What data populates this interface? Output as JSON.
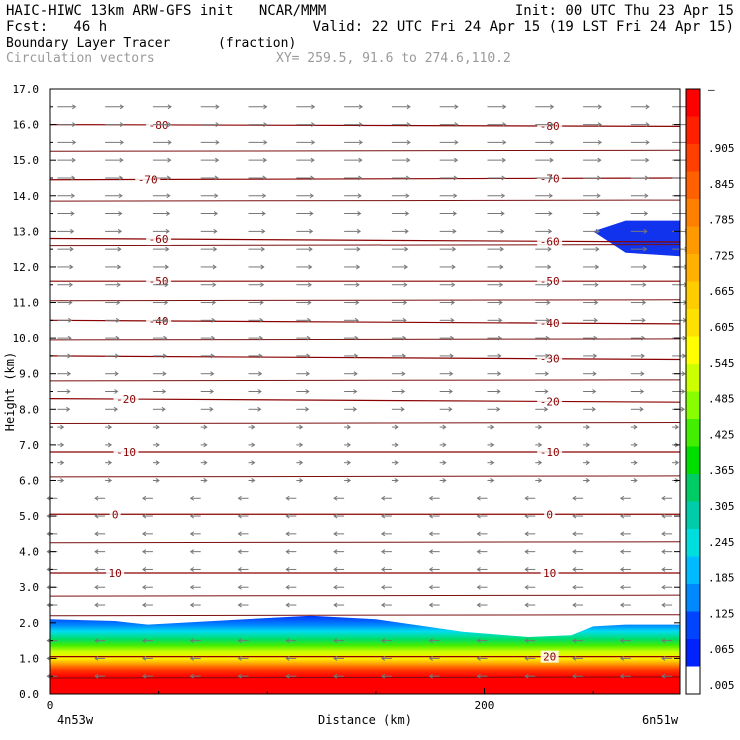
{
  "header": {
    "model_line": "HAIC-HIWC 13km ARW-GFS init   NCAR/MMM",
    "init_line": "Init: 00 UTC Thu 23 Apr 15",
    "fcst_line": "Fcst:   46 h",
    "valid_line": "Valid: 22 UTC Fri 24 Apr 15 (19 LST Fri 24 Apr 15)",
    "field_name": "Boundary Layer Tracer",
    "field_units": "(fraction)",
    "vector_name": "Circulation vectors",
    "xy_line": "XY= 259.5, 91.6 to 274.6,110.2"
  },
  "chart_data": {
    "type": "heatmap",
    "title": "Boundary Layer Tracer",
    "xlabel": "Distance (km)",
    "ylabel": "Height (km)",
    "xlim": [
      0,
      290
    ],
    "ylim": [
      0,
      17
    ],
    "x_ticks": [
      0,
      200
    ],
    "x_tick_labels": [
      "0",
      "200"
    ],
    "x_endpoints": [
      "4n53w",
      "6n51w"
    ],
    "y_ticks": [
      0,
      1,
      2,
      3,
      4,
      5,
      6,
      7,
      8,
      9,
      10,
      11,
      12,
      13,
      14,
      15,
      16,
      17
    ],
    "y_tick_labels": [
      "0.0",
      "1.0",
      "2.0",
      "3.0",
      "4.0",
      "5.0",
      "6.0",
      "7.0",
      "8.0",
      "9.0",
      "10.0",
      "11.0",
      "12.0",
      "13.0",
      "14.0",
      "15.0",
      "16.0",
      "17.0"
    ],
    "boundary_layer_top_km": {
      "x": [
        0,
        30,
        45,
        90,
        120,
        150,
        190,
        220,
        240,
        250,
        265,
        290
      ],
      "y": [
        2.1,
        2.05,
        1.95,
        2.1,
        2.2,
        2.1,
        1.75,
        1.6,
        1.65,
        1.9,
        1.95,
        1.95
      ]
    },
    "upper_patch_km": {
      "x": [
        250,
        265,
        290
      ],
      "y_top": [
        13.0,
        13.3,
        13.3
      ],
      "y_bottom": [
        13.0,
        12.4,
        12.3
      ]
    },
    "colorbar": {
      "top_label": "–",
      "labels": [
        ".905",
        ".845",
        ".785",
        ".725",
        ".665",
        ".605",
        ".545",
        ".485",
        ".425",
        ".365",
        ".305",
        ".245",
        ".185",
        ".125",
        ".065",
        ".005"
      ],
      "colors": [
        "#ff0000",
        "#ff2000",
        "#ff4000",
        "#ff6000",
        "#ff8000",
        "#ff9900",
        "#ffb000",
        "#ffcc00",
        "#ffe000",
        "#ffff00",
        "#ccff00",
        "#88ff00",
        "#44ee00",
        "#00dd00",
        "#00cc66",
        "#00ccaa",
        "#00dddd",
        "#00bbff",
        "#0088ff",
        "#0044ff",
        "#0022ff",
        "#ffffff"
      ]
    },
    "contours": [
      {
        "label": "-80",
        "x": [
          0,
          290
        ],
        "y": [
          16.0,
          15.95
        ],
        "label_x": [
          50,
          230
        ]
      },
      {
        "label": "-70",
        "x": [
          0,
          290
        ],
        "y": [
          14.45,
          14.5
        ],
        "label_x": [
          45,
          230
        ]
      },
      {
        "label": "-60",
        "x": [
          0,
          290
        ],
        "y": [
          12.8,
          12.7
        ],
        "label_x": [
          50,
          230
        ]
      },
      {
        "label": "-50",
        "x": [
          0,
          290
        ],
        "y": [
          11.6,
          11.6
        ],
        "label_x": [
          50,
          230
        ]
      },
      {
        "label": "-40",
        "x": [
          0,
          290
        ],
        "y": [
          10.5,
          10.4
        ],
        "label_x": [
          50,
          230
        ]
      },
      {
        "label": "-30",
        "x": [
          0,
          290
        ],
        "y": [
          9.5,
          9.4
        ],
        "label_x": [
          null,
          230
        ]
      },
      {
        "label": "-20",
        "x": [
          0,
          290
        ],
        "y": [
          8.3,
          8.2
        ],
        "label_x": [
          35,
          230
        ]
      },
      {
        "label": "-10",
        "x": [
          0,
          290
        ],
        "y": [
          6.8,
          6.8
        ],
        "label_x": [
          35,
          230
        ]
      },
      {
        "label": "0",
        "x": [
          0,
          290
        ],
        "y": [
          5.05,
          5.05
        ],
        "label_x": [
          30,
          230
        ]
      },
      {
        "label": "10",
        "x": [
          0,
          290
        ],
        "y": [
          3.4,
          3.4
        ],
        "label_x": [
          30,
          230
        ]
      },
      {
        "label": "20",
        "x": [
          0,
          290
        ],
        "y": [
          1.05,
          1.05
        ],
        "label_x": [
          null,
          230
        ]
      }
    ],
    "extra_isotherms_km": [
      15.25,
      13.85,
      12.6,
      11.05,
      9.95,
      8.8,
      7.6,
      6.1,
      4.25,
      2.75,
      2.2,
      0.45
    ],
    "vectors": {
      "x": [
        2,
        24,
        46,
        68,
        90,
        112,
        134,
        156,
        178,
        200,
        222,
        244,
        266,
        285
      ],
      "levels_km": [
        0.5,
        1.0,
        1.5,
        2.5,
        3.0,
        3.5,
        4.0,
        4.5,
        5.0,
        5.5,
        6.0,
        6.5,
        7.0,
        7.5,
        8.0,
        8.5,
        9.0,
        9.5,
        10.0,
        10.5,
        11.0,
        11.5,
        12.0,
        12.5,
        13.0,
        13.5,
        14.0,
        14.5,
        15.0,
        15.5,
        16.0,
        16.5
      ]
    }
  }
}
